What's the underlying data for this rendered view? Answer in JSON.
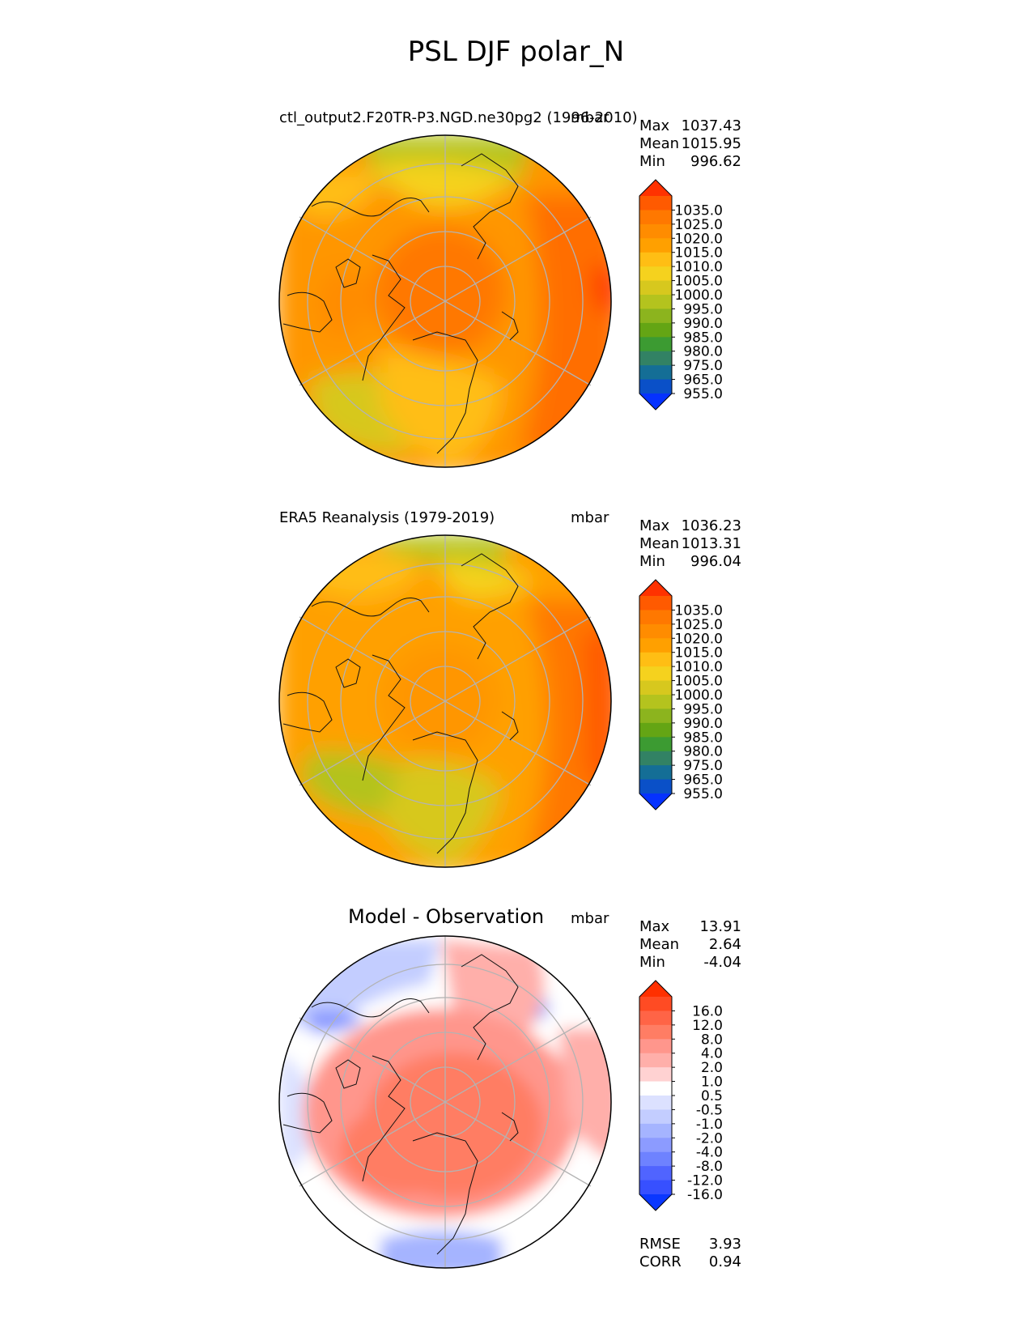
{
  "figure": {
    "title": "PSL DJF polar_N"
  },
  "panels": [
    {
      "title_left": "ctl_output2.F20TR-P3.NGD.ne30pg2 (1996-2010)",
      "units": "mbar",
      "stats": [
        {
          "label": "Max",
          "value": "1037.43"
        },
        {
          "label": "Mean",
          "value": "1015.95"
        },
        {
          "label": "Min",
          "value": "996.62"
        }
      ],
      "colorbar": {
        "ticks": [
          "1035.0",
          "1025.0",
          "1020.0",
          "1015.0",
          "1010.0",
          "1005.0",
          "1000.0",
          "995.0",
          "990.0",
          "985.0",
          "980.0",
          "975.0",
          "965.0",
          "955.0"
        ],
        "colors": [
          "#ff3200",
          "#ff5a00",
          "#ff7800",
          "#ff8c00",
          "#ffa000",
          "#ffbe14",
          "#f5d21e",
          "#d7c81e",
          "#b4c31e",
          "#8cb41e",
          "#64a514",
          "#3c9b32",
          "#328264",
          "#146e96",
          "#0a50c8",
          "#0532ff"
        ]
      }
    },
    {
      "title_left": "ERA5 Reanalysis (1979-2019)",
      "units": "mbar",
      "stats": [
        {
          "label": "Max",
          "value": "1036.23"
        },
        {
          "label": "Mean",
          "value": "1013.31"
        },
        {
          "label": "Min",
          "value": "996.04"
        }
      ],
      "colorbar": {
        "ticks": [
          "1035.0",
          "1025.0",
          "1020.0",
          "1015.0",
          "1010.0",
          "1005.0",
          "1000.0",
          "995.0",
          "990.0",
          "985.0",
          "980.0",
          "975.0",
          "965.0",
          "955.0"
        ],
        "colors": [
          "#ff3200",
          "#ff5a00",
          "#ff7800",
          "#ff8c00",
          "#ffa000",
          "#ffbe14",
          "#f5d21e",
          "#d7c81e",
          "#b4c31e",
          "#8cb41e",
          "#64a514",
          "#3c9b32",
          "#328264",
          "#146e96",
          "#0a50c8",
          "#0532ff"
        ]
      }
    },
    {
      "title_center": "Model - Observation",
      "units": "mbar",
      "stats": [
        {
          "label": "Max",
          "value": "13.91"
        },
        {
          "label": "Mean",
          "value": "2.64"
        },
        {
          "label": "Min",
          "value": "-4.04"
        }
      ],
      "colorbar": {
        "ticks": [
          "16.0",
          "12.0",
          "8.0",
          "4.0",
          "2.0",
          "1.0",
          "0.5",
          "-0.5",
          "-1.0",
          "-2.0",
          "-4.0",
          "-8.0",
          "-12.0",
          "-16.0"
        ],
        "colors": [
          "#ff3000",
          "#ff4b23",
          "#ff6446",
          "#ff7d64",
          "#ff968c",
          "#ffafaa",
          "#ffd2d2",
          "#ffffff",
          "#dce1ff",
          "#c3cdff",
          "#a5b4ff",
          "#8c9bff",
          "#6e82ff",
          "#5064ff",
          "#3750ff",
          "#0a37ff"
        ]
      },
      "footer_stats": [
        {
          "label": "RMSE",
          "value": "3.93"
        },
        {
          "label": "CORR",
          "value": "0.94"
        }
      ]
    }
  ]
}
